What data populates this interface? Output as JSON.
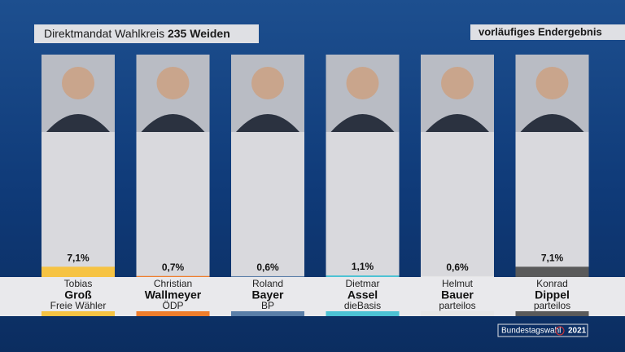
{
  "chart_data": {
    "type": "bar",
    "title": "Direktmandat Wahlkreis",
    "title_bold": "235 Weiden",
    "status": "vorläufiges Endergebnis",
    "footer": "Bundestagswahl",
    "footer_year": "2021",
    "first_names": [
      "Tobias",
      "Christian",
      "Roland",
      "Dietmar",
      "Helmut",
      "Konrad"
    ],
    "categories": [
      "Groß",
      "Wallmeyer",
      "Bayer",
      "Assel",
      "Bauer",
      "Dippel"
    ],
    "parties": [
      "Freie Wähler",
      "ÖDP",
      "BP",
      "dieBasis",
      "parteilos",
      "parteilos"
    ],
    "colors": [
      "#f6c343",
      "#ee7d2c",
      "#5a7ea8",
      "#4cc2d4",
      "#e6e6e6",
      "#5a5a5a"
    ],
    "values": [
      7.1,
      0.7,
      0.6,
      1.1,
      0.6,
      7.1
    ],
    "value_labels": [
      "7,1%",
      "0,7%",
      "0,6%",
      "1,1%",
      "0,6%",
      "7,1%"
    ],
    "ylim": [
      0,
      100
    ]
  }
}
